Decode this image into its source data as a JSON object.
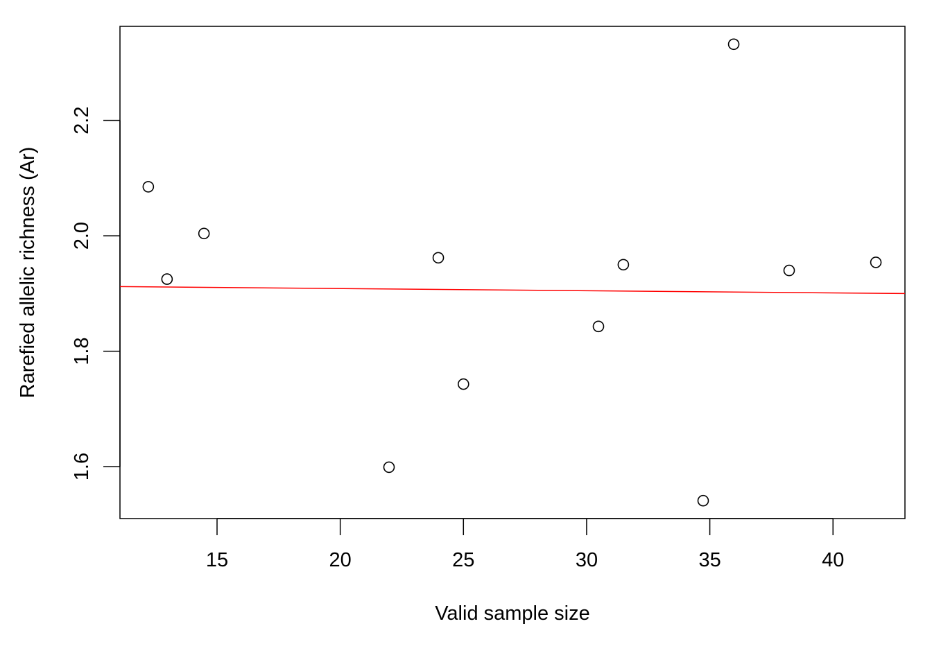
{
  "chart_data": {
    "type": "scatter",
    "title": "",
    "xlabel": "Valid sample size",
    "ylabel": "Rarefied allelic richness (Ar)",
    "xlim": [
      11.06,
      42.92
    ],
    "ylim": [
      1.51,
      2.363
    ],
    "xticks": [
      15,
      20,
      25,
      30,
      35,
      40
    ],
    "xtick_labels": [
      "15",
      "20",
      "25",
      "30",
      "35",
      "40"
    ],
    "yticks": [
      1.6,
      1.8,
      2.0,
      2.2
    ],
    "ytick_labels": [
      "1.6",
      "1.8",
      "2.0",
      "2.2"
    ],
    "grid": false,
    "points": [
      {
        "x": 12.21,
        "y": 2.085
      },
      {
        "x": 12.97,
        "y": 1.925
      },
      {
        "x": 14.47,
        "y": 2.004
      },
      {
        "x": 21.98,
        "y": 1.599
      },
      {
        "x": 23.98,
        "y": 1.962
      },
      {
        "x": 25.0,
        "y": 1.743
      },
      {
        "x": 30.48,
        "y": 1.843
      },
      {
        "x": 31.49,
        "y": 1.95
      },
      {
        "x": 34.73,
        "y": 1.541
      },
      {
        "x": 35.97,
        "y": 2.332
      },
      {
        "x": 38.22,
        "y": 1.94
      },
      {
        "x": 41.74,
        "y": 1.954
      }
    ],
    "regression_line": {
      "x": [
        11.06,
        42.92
      ],
      "y": [
        1.912,
        1.9
      ],
      "color": "#ff0000"
    },
    "point_color": "#000000"
  }
}
